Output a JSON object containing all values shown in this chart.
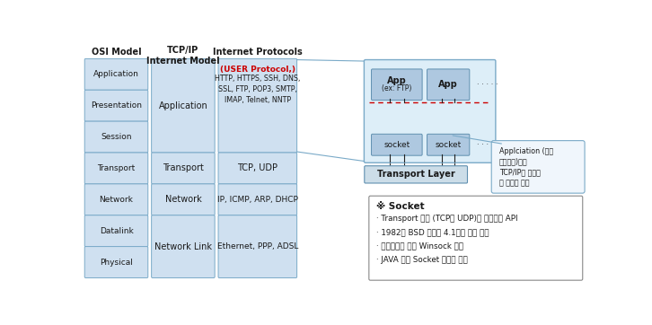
{
  "bg_color": "#ffffff",
  "box_fill": "#cfe0f0",
  "box_edge": "#7aaac8",
  "title_color": "#1a1a1a",
  "osi_layers": [
    "Application",
    "Presentation",
    "Session",
    "Transport",
    "Network",
    "Datalink",
    "Physical"
  ],
  "col_headers": [
    "OSI Model",
    "TCP/IP\nInternet Model",
    "Internet Protocols"
  ],
  "socket_note": "Applciation (응용\n프로그램)에서\nTCP/IP를 이용하\n는 사창구 역할",
  "socket_info_title": "※ Socket",
  "socket_info_lines": [
    "· Transport 계층 (TCP나 UDP)을 이용하는 API",
    "· 1982년 BSD 유닉스 4.1에서 처음 소개",
    "· 윈도우즈의 경우 Winsock 제공",
    "· JAVA 또한 Socket 클래스 제공"
  ]
}
